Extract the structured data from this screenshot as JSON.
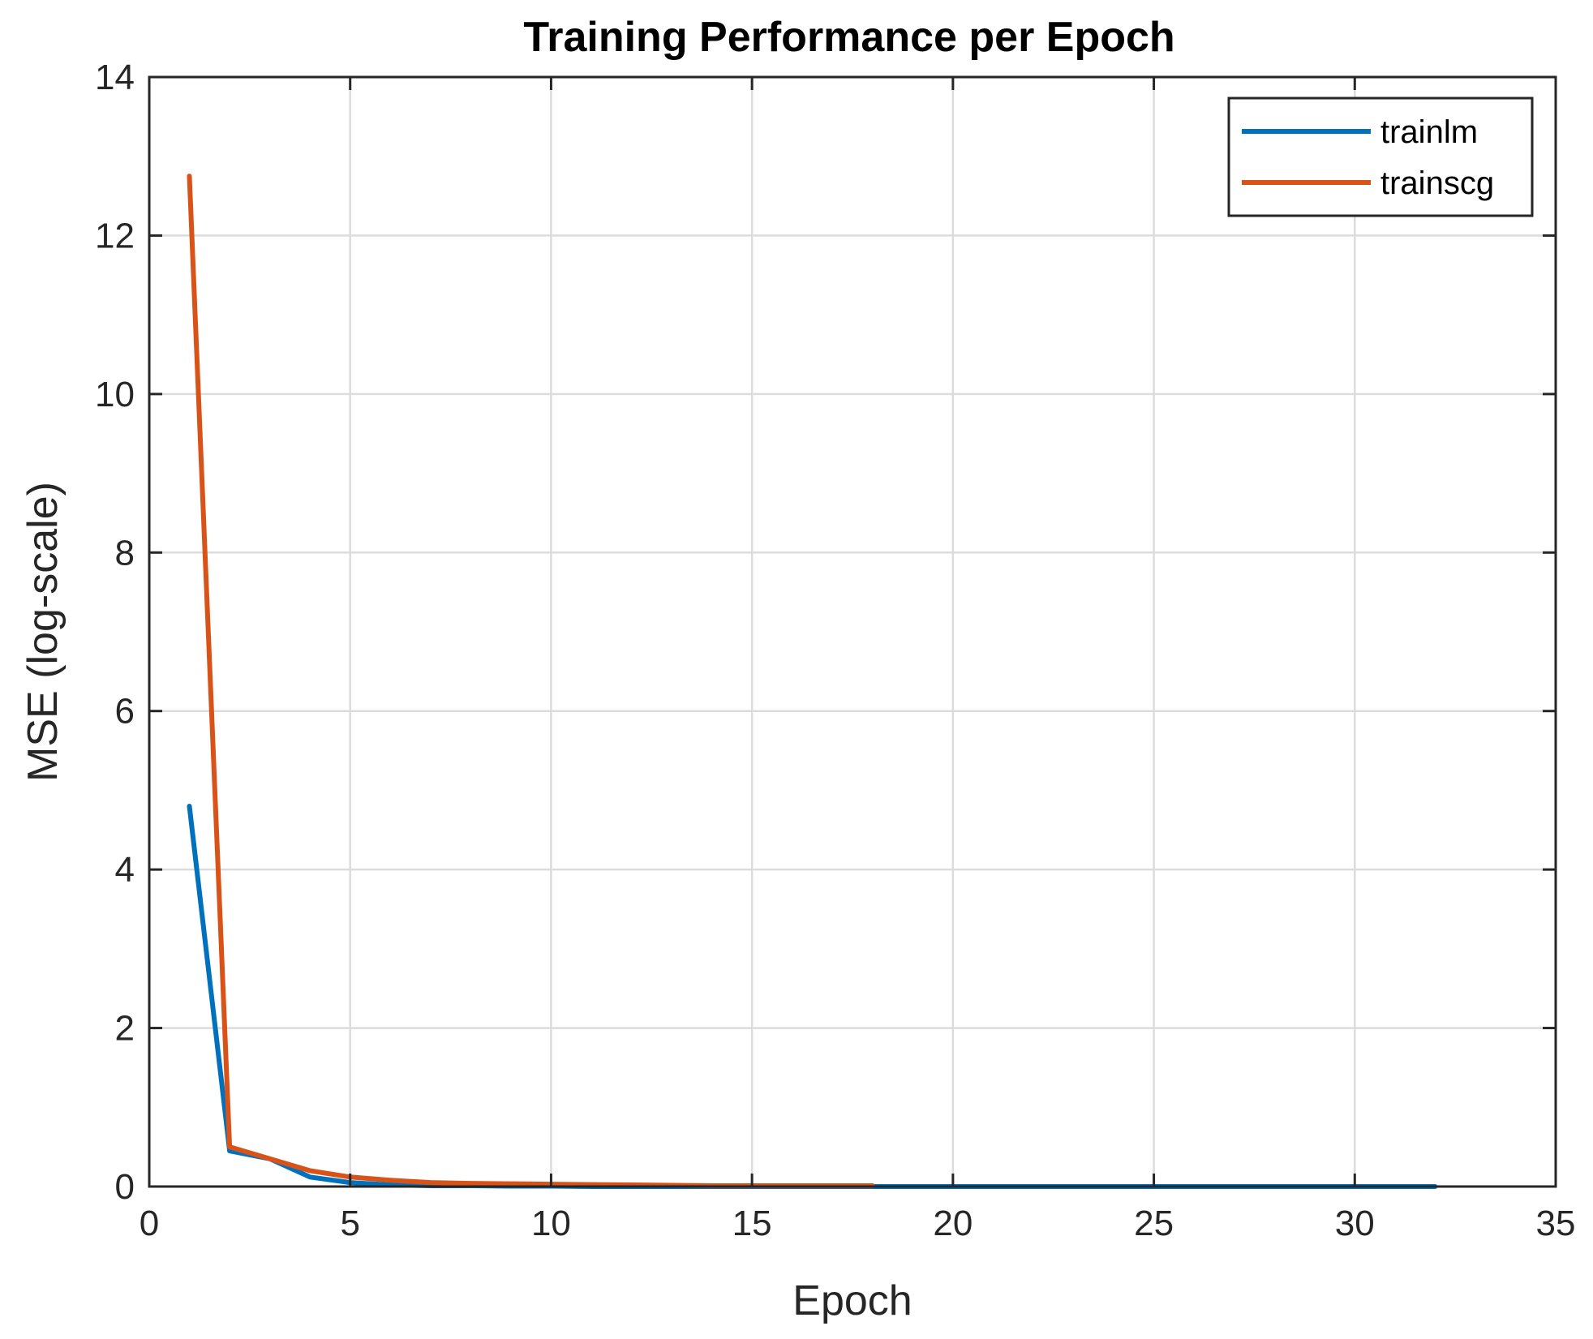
{
  "chart_data": {
    "type": "line",
    "title": "Training Performance per Epoch",
    "xlabel": "Epoch",
    "ylabel": "MSE (log-scale)",
    "xlim": [
      0,
      35
    ],
    "ylim": [
      0,
      14
    ],
    "xticks": [
      0,
      5,
      10,
      15,
      20,
      25,
      30,
      35
    ],
    "yticks": [
      0,
      2,
      4,
      6,
      8,
      10,
      12,
      14
    ],
    "grid": true,
    "legend_position": "top-right",
    "series": [
      {
        "name": "trainlm",
        "color": "#0072BD",
        "x": [
          1,
          2,
          3,
          4,
          5,
          6,
          7,
          8,
          9,
          10,
          11,
          12,
          13,
          14,
          15,
          16,
          17,
          18,
          19,
          20,
          21,
          22,
          23,
          24,
          25,
          26,
          27,
          28,
          29,
          30,
          31,
          32
        ],
        "y": [
          4.8,
          0.45,
          0.35,
          0.12,
          0.05,
          0.02,
          0.01,
          0.01,
          0.005,
          0.005,
          0,
          0,
          0,
          0,
          0,
          0,
          0,
          0,
          0,
          0,
          0,
          0,
          0,
          0,
          0,
          0,
          0,
          0,
          0,
          0,
          0,
          0
        ]
      },
      {
        "name": "trainscg",
        "color": "#D95319",
        "x": [
          1,
          2,
          3,
          4,
          5,
          6,
          7,
          8,
          9,
          10,
          11,
          12,
          13,
          14,
          15,
          16,
          17,
          18
        ],
        "y": [
          12.75,
          0.5,
          0.35,
          0.2,
          0.12,
          0.08,
          0.05,
          0.04,
          0.035,
          0.03,
          0.025,
          0.02,
          0.015,
          0.01,
          0.01,
          0.01,
          0.01,
          0.01
        ]
      }
    ]
  }
}
